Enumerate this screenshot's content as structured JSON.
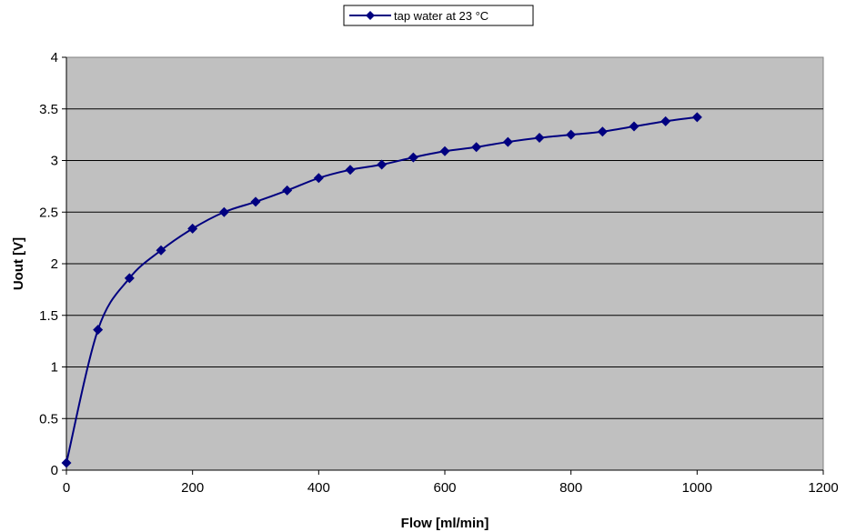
{
  "chart_data": {
    "type": "line",
    "xlabel": "Flow [ml/min]",
    "ylabel": "Uout [V]",
    "xlim": [
      0,
      1200
    ],
    "ylim": [
      0,
      4
    ],
    "xticks": [
      "0",
      "200",
      "400",
      "600",
      "800",
      "1000",
      "1200"
    ],
    "yticks": [
      "0",
      "0.5",
      "1",
      "1.5",
      "2",
      "2.5",
      "3",
      "3.5",
      "4"
    ],
    "grid": "horizontal",
    "legend_position": "top-center",
    "plot_background": "#c0c0c0",
    "series": [
      {
        "name": "tap water at 23 °C",
        "color": "#000080",
        "marker": "diamond",
        "smooth": true,
        "x": [
          0,
          50,
          100,
          150,
          200,
          250,
          300,
          350,
          400,
          450,
          500,
          550,
          600,
          650,
          700,
          750,
          800,
          850,
          900,
          950,
          1000
        ],
        "y": [
          0.07,
          1.36,
          1.86,
          2.13,
          2.34,
          2.5,
          2.6,
          2.71,
          2.83,
          2.91,
          2.96,
          3.03,
          3.09,
          3.13,
          3.18,
          3.22,
          3.25,
          3.28,
          3.33,
          3.38,
          3.42
        ]
      }
    ]
  }
}
